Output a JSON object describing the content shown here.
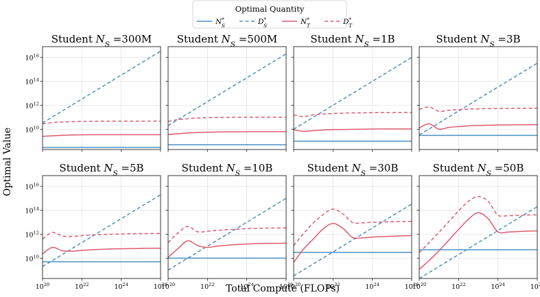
{
  "chart_data": {
    "type": "line",
    "ylabel": "Optimal Value",
    "xlabel": "Total Compute (FLOPs)",
    "xscale": "log",
    "yscale": "log",
    "xlim_log10": [
      20,
      26
    ],
    "ylim_log10": [
      8.3,
      16.9
    ],
    "x_ticks": [
      {
        "exp": 20,
        "label": "10",
        "sup": "20"
      },
      {
        "exp": 22,
        "label": "10",
        "sup": "22"
      },
      {
        "exp": 24,
        "label": "10",
        "sup": "24"
      },
      {
        "exp": 26,
        "label": "10",
        "sup": "26"
      }
    ],
    "y_ticks": [
      {
        "exp": 10,
        "label": "10",
        "sup": "10"
      },
      {
        "exp": 12,
        "label": "10",
        "sup": "12"
      },
      {
        "exp": 14,
        "label": "10",
        "sup": "14"
      },
      {
        "exp": 16,
        "label": "10",
        "sup": "16"
      }
    ],
    "legend": {
      "title": "Optimal Quantity",
      "position": "top-center",
      "entries": [
        {
          "key": "NS",
          "label": "N",
          "sub": "S",
          "sup": "*"
        },
        {
          "key": "DS",
          "label": "D",
          "sub": "S",
          "sup": "*"
        },
        {
          "key": "NT",
          "label": "N",
          "sub": "T",
          "sup": "*"
        },
        {
          "key": "DT",
          "label": "D",
          "sub": "T",
          "sup": "*"
        }
      ]
    },
    "series_styles": {
      "NS": {
        "color": "#4a90c2",
        "dash": "solid"
      },
      "DS": {
        "color": "#4a90c2",
        "dash": "dashed"
      },
      "NT": {
        "color": "#de5b6d",
        "dash": "solid"
      },
      "DT": {
        "color": "#de5b6d",
        "dash": "dashed"
      }
    },
    "x_log10": [
      20,
      20.5,
      21,
      21.5,
      22,
      22.5,
      23,
      23.5,
      24,
      24.5,
      25,
      25.5,
      26
    ],
    "panels": [
      {
        "title_prefix": "Student ",
        "title_var": "N",
        "title_sub": "S",
        "title_value": " =300M",
        "series": {
          "NS": [
            8.48,
            8.48,
            8.48,
            8.48,
            8.48,
            8.48,
            8.48,
            8.48,
            8.48,
            8.48,
            8.48,
            8.48,
            8.48
          ],
          "DS": [
            10.52,
            11.02,
            11.52,
            12.02,
            12.52,
            13.02,
            13.52,
            14.02,
            14.52,
            15.02,
            15.52,
            16.02,
            16.52
          ],
          "NT": [
            9.4,
            9.45,
            9.49,
            9.52,
            9.53,
            9.54,
            9.54,
            9.54,
            9.54,
            9.54,
            9.54,
            9.54,
            9.54
          ],
          "DT": [
            10.45,
            10.55,
            10.6,
            10.63,
            10.65,
            10.66,
            10.67,
            10.67,
            10.67,
            10.67,
            10.67,
            10.67,
            10.67
          ]
        }
      },
      {
        "title_prefix": "Student ",
        "title_var": "N",
        "title_sub": "S",
        "title_value": " =500M",
        "series": {
          "NS": [
            8.7,
            8.7,
            8.7,
            8.7,
            8.7,
            8.7,
            8.7,
            8.7,
            8.7,
            8.7,
            8.7,
            8.7,
            8.7
          ],
          "DS": [
            10.3,
            10.8,
            11.3,
            11.8,
            12.3,
            12.8,
            13.3,
            13.8,
            14.3,
            14.8,
            15.3,
            15.8,
            16.3
          ],
          "NT": [
            9.55,
            9.62,
            9.68,
            9.72,
            9.75,
            9.77,
            9.78,
            9.78,
            9.79,
            9.79,
            9.79,
            9.79,
            9.79
          ],
          "DT": [
            10.65,
            10.8,
            10.88,
            10.93,
            10.96,
            10.98,
            10.99,
            11.0,
            11.0,
            11.0,
            11.0,
            11.0,
            11.0
          ]
        }
      },
      {
        "title_prefix": "Student ",
        "title_var": "N",
        "title_sub": "S",
        "title_value": " =1B",
        "series": {
          "NS": [
            9.0,
            9.0,
            9.0,
            9.0,
            9.0,
            9.0,
            9.0,
            9.0,
            9.0,
            9.0,
            9.0,
            9.0,
            9.0
          ],
          "DS": [
            10.0,
            10.5,
            11.0,
            11.5,
            12.0,
            12.5,
            13.0,
            13.5,
            14.0,
            14.5,
            15.0,
            15.5,
            16.0
          ],
          "NT": [
            9.95,
            9.82,
            9.88,
            9.93,
            9.96,
            9.98,
            9.99,
            10.0,
            10.01,
            10.02,
            10.02,
            10.02,
            10.02
          ],
          "DT": [
            11.2,
            11.05,
            11.2,
            11.27,
            11.31,
            11.34,
            11.36,
            11.37,
            11.38,
            11.39,
            11.39,
            11.39,
            11.4
          ]
        }
      },
      {
        "title_prefix": "Student ",
        "title_var": "N",
        "title_sub": "S",
        "title_value": " =3B",
        "series": {
          "NS": [
            9.48,
            9.48,
            9.48,
            9.48,
            9.48,
            9.48,
            9.48,
            9.48,
            9.48,
            9.48,
            9.48,
            9.48,
            9.48
          ],
          "DS": [
            9.52,
            10.02,
            10.52,
            11.02,
            11.52,
            12.02,
            12.52,
            13.02,
            13.52,
            14.02,
            14.52,
            15.02,
            15.52
          ],
          "NT": [
            10.1,
            10.45,
            10.0,
            10.15,
            10.22,
            10.28,
            10.31,
            10.33,
            10.35,
            10.36,
            10.37,
            10.37,
            10.38
          ],
          "DT": [
            11.65,
            11.85,
            11.5,
            11.58,
            11.64,
            11.68,
            11.7,
            11.72,
            11.73,
            11.74,
            11.75,
            11.75,
            11.76
          ]
        }
      },
      {
        "title_prefix": "Student ",
        "title_var": "N",
        "title_sub": "S",
        "title_value": " =5B",
        "series": {
          "NS": [
            9.7,
            9.7,
            9.7,
            9.7,
            9.7,
            9.7,
            9.7,
            9.7,
            9.7,
            9.7,
            9.7,
            9.7,
            9.7
          ],
          "DS": [
            9.3,
            9.8,
            10.3,
            10.8,
            11.3,
            11.8,
            12.3,
            12.8,
            13.3,
            13.8,
            14.3,
            14.8,
            15.3
          ],
          "NT": [
            10.35,
            10.9,
            10.62,
            10.58,
            10.65,
            10.7,
            10.74,
            10.77,
            10.79,
            10.8,
            10.81,
            10.82,
            10.82
          ],
          "DT": [
            11.6,
            12.15,
            11.85,
            11.82,
            11.88,
            11.93,
            11.97,
            12.0,
            12.02,
            12.04,
            12.05,
            12.06,
            12.06
          ]
        }
      },
      {
        "title_prefix": "Student ",
        "title_var": "N",
        "title_sub": "S",
        "title_value": " =10B",
        "series": {
          "NS": [
            10.0,
            10.0,
            10.0,
            10.0,
            10.0,
            10.0,
            10.0,
            10.0,
            10.0,
            10.0,
            10.0,
            10.0,
            10.0
          ],
          "DS": [
            9.0,
            9.5,
            10.0,
            10.5,
            11.0,
            11.5,
            12.0,
            12.5,
            13.0,
            13.5,
            14.0,
            14.5,
            15.0
          ],
          "NT": [
            10.05,
            10.8,
            11.45,
            11.05,
            10.9,
            11.0,
            11.08,
            11.14,
            11.18,
            11.21,
            11.23,
            11.24,
            11.25
          ],
          "DT": [
            11.3,
            12.1,
            12.65,
            12.2,
            12.25,
            12.32,
            12.38,
            12.42,
            12.46,
            12.49,
            12.51,
            12.52,
            12.53
          ]
        }
      },
      {
        "title_prefix": "Student ",
        "title_var": "N",
        "title_sub": "S",
        "title_value": " =30B",
        "series": {
          "NS": [
            10.48,
            10.48,
            10.48,
            10.48,
            10.48,
            10.48,
            10.48,
            10.48,
            10.48,
            10.48,
            10.48,
            10.48,
            10.48
          ],
          "DS": [
            8.52,
            9.02,
            9.52,
            10.02,
            10.52,
            11.02,
            11.52,
            12.02,
            12.52,
            13.02,
            13.52,
            14.02,
            14.52
          ],
          "NT": [
            9.65,
            10.75,
            11.6,
            12.45,
            12.9,
            12.5,
            11.72,
            11.7,
            11.76,
            11.8,
            11.83,
            11.86,
            11.88
          ],
          "DT": [
            11.05,
            12.05,
            12.95,
            13.65,
            14.1,
            13.7,
            12.98,
            12.95,
            13.0,
            13.02,
            13.04,
            13.06,
            13.07
          ]
        }
      },
      {
        "title_prefix": "Student ",
        "title_var": "N",
        "title_sub": "S",
        "title_value": " =50B",
        "series": {
          "NS": [
            10.7,
            10.7,
            10.7,
            10.7,
            10.7,
            10.7,
            10.7,
            10.7,
            10.7,
            10.7,
            10.7,
            10.7,
            10.7
          ],
          "DS": [
            8.3,
            8.8,
            9.3,
            9.8,
            10.3,
            10.8,
            11.3,
            11.8,
            12.3,
            12.8,
            13.3,
            13.8,
            14.3
          ],
          "NT": [
            9.05,
            9.8,
            10.6,
            11.5,
            12.4,
            13.25,
            13.8,
            13.3,
            12.2,
            12.18,
            12.22,
            12.26,
            12.28
          ],
          "DT": [
            10.45,
            11.3,
            12.15,
            13.05,
            13.95,
            14.75,
            15.15,
            14.75,
            13.6,
            13.55,
            13.58,
            13.6,
            13.62
          ]
        }
      }
    ]
  }
}
